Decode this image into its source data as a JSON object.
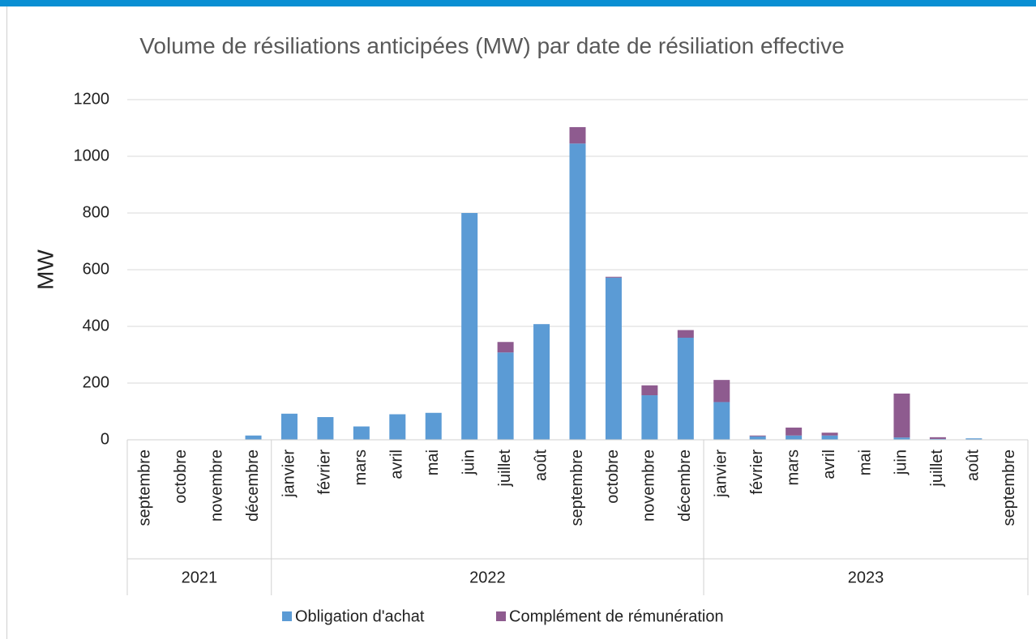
{
  "chart_data": {
    "type": "bar",
    "stacked": true,
    "title": "Volume de résiliations anticipées (MW) par date de résiliation effective",
    "y_label": "MW",
    "groups": [
      {
        "label": "2021",
        "categories": [
          "septembre",
          "octobre",
          "novembre",
          "décembre"
        ]
      },
      {
        "label": "2022",
        "categories": [
          "janvier",
          "février",
          "mars",
          "avril",
          "mai",
          "juin",
          "juillet",
          "août",
          "septembre",
          "octobre",
          "novembre",
          "décembre"
        ]
      },
      {
        "label": "2023",
        "categories": [
          "janvier",
          "février",
          "mars",
          "avril",
          "mai",
          "juin",
          "juillet",
          "août",
          "septembre"
        ]
      }
    ],
    "series": [
      {
        "name": "Obligation d'achat",
        "color": "#5b9bd5",
        "values": [
          0,
          0,
          0,
          15,
          92,
          80,
          47,
          90,
          95,
          800,
          308,
          408,
          1045,
          572,
          157,
          360,
          133,
          12,
          15,
          15,
          0,
          8,
          3,
          5,
          0
        ]
      },
      {
        "name": "Complément de rémunération",
        "color": "#8e5b8f",
        "values": [
          0,
          0,
          0,
          0,
          0,
          0,
          0,
          0,
          0,
          0,
          37,
          0,
          58,
          3,
          35,
          27,
          78,
          3,
          28,
          10,
          0,
          155,
          6,
          0,
          0
        ]
      }
    ],
    "ylim": [
      0,
      1200
    ],
    "yticks": [
      0,
      200,
      400,
      600,
      800,
      1000,
      1200
    ],
    "grid": true,
    "legend": "bottom"
  }
}
